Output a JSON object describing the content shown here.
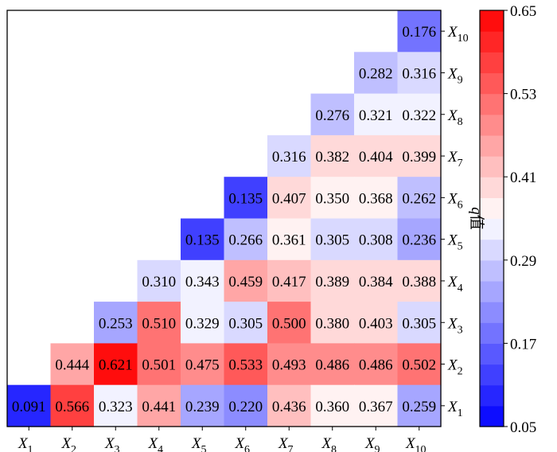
{
  "chart_data": {
    "type": "heatmap",
    "title": "",
    "xlabel": "",
    "ylabel": "",
    "x_categories": [
      "X1",
      "X2",
      "X3",
      "X4",
      "X5",
      "X6",
      "X7",
      "X8",
      "X9",
      "X10"
    ],
    "y_categories": [
      "X10",
      "X9",
      "X8",
      "X7",
      "X6",
      "X5",
      "X4",
      "X3",
      "X2",
      "X1"
    ],
    "matrix_lower_triangle_by_row": [
      {
        "row": "X10",
        "values": [
          null,
          null,
          null,
          null,
          null,
          null,
          null,
          null,
          null,
          0.176
        ]
      },
      {
        "row": "X9",
        "values": [
          null,
          null,
          null,
          null,
          null,
          null,
          null,
          null,
          0.282,
          0.316
        ]
      },
      {
        "row": "X8",
        "values": [
          null,
          null,
          null,
          null,
          null,
          null,
          null,
          0.276,
          0.321,
          0.322
        ]
      },
      {
        "row": "X7",
        "values": [
          null,
          null,
          null,
          null,
          null,
          null,
          0.316,
          0.382,
          0.404,
          0.399
        ]
      },
      {
        "row": "X6",
        "values": [
          null,
          null,
          null,
          null,
          null,
          0.135,
          0.407,
          0.35,
          0.368,
          0.262
        ]
      },
      {
        "row": "X5",
        "values": [
          null,
          null,
          null,
          null,
          0.135,
          0.266,
          0.361,
          0.305,
          0.308,
          0.236
        ]
      },
      {
        "row": "X4",
        "values": [
          null,
          null,
          null,
          0.31,
          0.343,
          0.459,
          0.417,
          0.389,
          0.384,
          0.388
        ]
      },
      {
        "row": "X3",
        "values": [
          null,
          null,
          0.253,
          0.51,
          0.329,
          0.305,
          0.5,
          0.38,
          0.403,
          0.305
        ]
      },
      {
        "row": "X2",
        "values": [
          null,
          0.444,
          0.621,
          0.501,
          0.475,
          0.533,
          0.493,
          0.486,
          0.486,
          0.502
        ]
      },
      {
        "row": "X1",
        "values": [
          0.091,
          0.566,
          0.323,
          0.441,
          0.239,
          0.22,
          0.436,
          0.36,
          0.367,
          0.259
        ]
      }
    ],
    "colorbar": {
      "label": "q值",
      "min": 0.05,
      "max": 0.65,
      "ticks": [
        "0.05",
        "0.17",
        "0.29",
        "0.41",
        "0.53",
        "0.65"
      ],
      "levels": 20,
      "cmap": "bwr"
    },
    "grid": false,
    "legend": "none"
  }
}
